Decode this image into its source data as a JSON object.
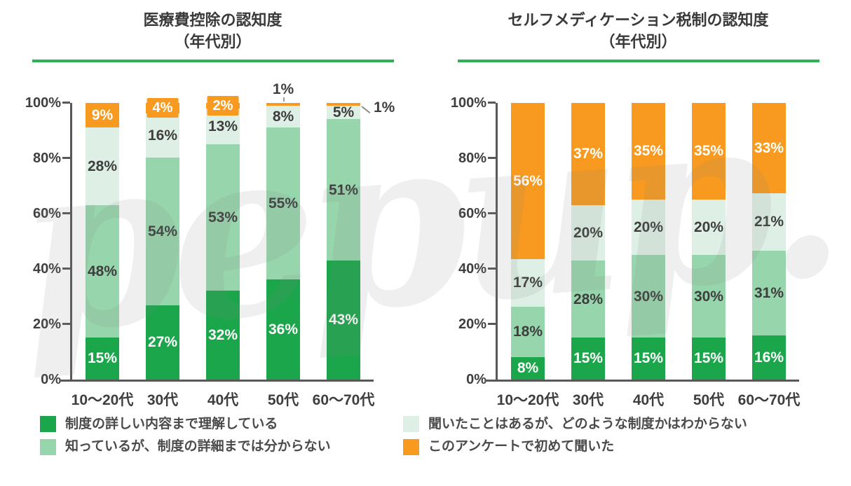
{
  "watermark_text": "pepup.",
  "colors": {
    "dark_green": "#1CA64B",
    "mid_green": "#97D5AC",
    "light_green": "#DEF0E6",
    "orange": "#F79A1F",
    "underline_green": "#2BB254",
    "axis": "#585858",
    "label_dark": "#3E3E3E",
    "label_light": "#FFFFFF"
  },
  "y_axis": {
    "ticks": [
      "100%",
      "80%",
      "60%",
      "40%",
      "20%",
      "0%"
    ]
  },
  "legend": [
    {
      "label": "制度の詳しい内容まで理解している",
      "color_key": "dark_green"
    },
    {
      "label": "知っているが、制度の詳細までは分からない",
      "color_key": "mid_green"
    },
    {
      "label": "聞いたことはあるが、どのような制度かはわからない",
      "color_key": "light_green"
    },
    {
      "label": "このアンケートで初めて聞いた",
      "color_key": "orange"
    }
  ],
  "chart_data": [
    {
      "type": "bar",
      "stacked": true,
      "title": "医療費控除の認知度",
      "subtitle": "（年代別）",
      "categories": [
        "10〜20代",
        "30代",
        "40代",
        "50代",
        "60〜70代"
      ],
      "series": [
        {
          "name": "制度の詳しい内容まで理解している",
          "color_key": "dark_green",
          "values": [
            15,
            27,
            32,
            36,
            43
          ]
        },
        {
          "name": "知っているが、制度の詳細までは分からない",
          "color_key": "mid_green",
          "values": [
            48,
            54,
            53,
            55,
            51
          ]
        },
        {
          "name": "聞いたことはあるが、どのような制度かはわからない",
          "color_key": "light_green",
          "values": [
            28,
            16,
            13,
            8,
            5
          ]
        },
        {
          "name": "このアンケートで初めて聞いた",
          "color_key": "orange",
          "values": [
            9,
            4,
            2,
            1,
            1
          ]
        }
      ],
      "ylabel": "",
      "xlabel": "",
      "ylim": [
        0,
        100
      ],
      "unit": "%",
      "grid": false,
      "legend_position": "bottom"
    },
    {
      "type": "bar",
      "stacked": true,
      "title": "セルフメディケーション税制の認知度",
      "subtitle": "（年代別）",
      "categories": [
        "10〜20代",
        "30代",
        "40代",
        "50代",
        "60〜70代"
      ],
      "series": [
        {
          "name": "制度の詳しい内容まで理解している",
          "color_key": "dark_green",
          "values": [
            8,
            15,
            15,
            15,
            16
          ]
        },
        {
          "name": "知っているが、制度の詳細までは分からない",
          "color_key": "mid_green",
          "values": [
            18,
            28,
            30,
            30,
            31
          ]
        },
        {
          "name": "聞いたことはあるが、どのような制度かはわからない",
          "color_key": "light_green",
          "values": [
            17,
            20,
            20,
            20,
            21
          ]
        },
        {
          "name": "このアンケートで初めて聞いた",
          "color_key": "orange",
          "values": [
            56,
            37,
            35,
            35,
            33
          ]
        }
      ],
      "ylabel": "",
      "xlabel": "",
      "ylim": [
        0,
        100
      ],
      "unit": "%",
      "grid": false,
      "legend_position": "bottom"
    }
  ]
}
